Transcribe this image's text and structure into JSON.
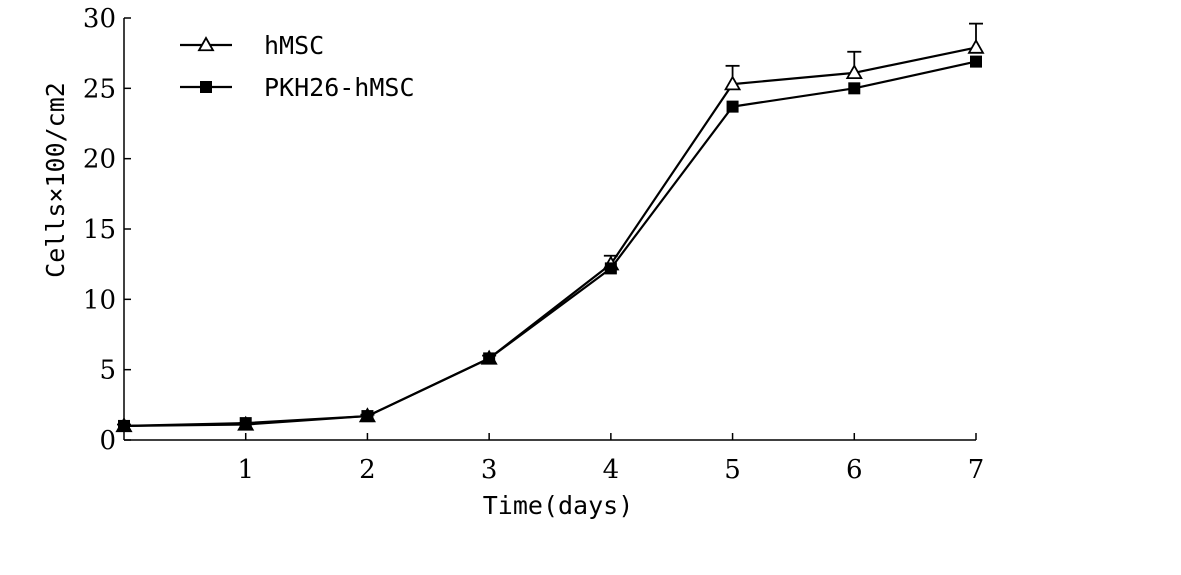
{
  "chart_data": {
    "type": "line",
    "xlabel": "Time(days)",
    "ylabel": "Cells×100/cm2",
    "xlim": [
      0,
      7
    ],
    "ylim": [
      0,
      30
    ],
    "x_ticks": [
      "1",
      "2",
      "3",
      "4",
      "5",
      "6",
      "7"
    ],
    "y_ticks": [
      "0",
      "5",
      "10",
      "15",
      "20",
      "25",
      "30"
    ],
    "grid": false,
    "legend_position": "top-left",
    "series": [
      {
        "name": "hMSC",
        "marker": "open-triangle",
        "color": "#000000",
        "x": [
          0,
          1,
          2,
          3,
          4,
          5,
          6,
          7
        ],
        "y": [
          1.0,
          1.1,
          1.7,
          5.8,
          12.5,
          25.3,
          26.1,
          27.9
        ],
        "error": [
          0.1,
          0.1,
          0.1,
          0.2,
          0.6,
          1.3,
          1.5,
          1.7
        ]
      },
      {
        "name": "PKH26-hMSC",
        "marker": "filled-square",
        "color": "#000000",
        "x": [
          0,
          1,
          2,
          3,
          4,
          5,
          6,
          7
        ],
        "y": [
          1.0,
          1.2,
          1.7,
          5.8,
          12.2,
          23.7,
          25.0,
          26.9
        ],
        "error": [
          0,
          0,
          0,
          0,
          0,
          0,
          0,
          0
        ]
      }
    ]
  }
}
